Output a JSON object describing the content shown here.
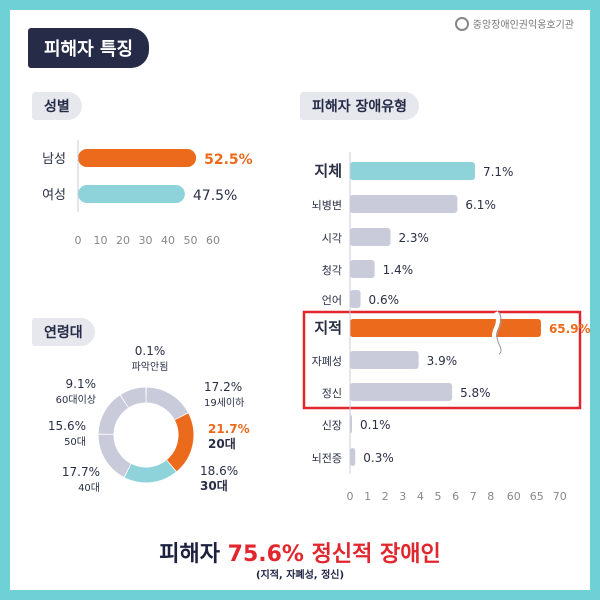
{
  "header": {
    "title": "피해자 특징",
    "org": "중앙장애인권익옹호기관"
  },
  "headline": {
    "prefix": "피해자",
    "stat": "75.6% 정신적 장애인",
    "note": "(지적, 자폐성, 정신)"
  },
  "colors": {
    "frame": "#6fd0d6",
    "orange": "#ec6a1c",
    "teal": "#8fd3da",
    "gray": "#c9cbdb",
    "navy": "#262b48",
    "highlight": "#e1262d"
  },
  "chart_data": [
    {
      "type": "bar",
      "title": "성별",
      "orientation": "horizontal",
      "categories": [
        "남성",
        "여성"
      ],
      "values": [
        52.5,
        47.5
      ],
      "value_labels": [
        "52.5%",
        "47.5%"
      ],
      "bar_colors": [
        "#ec6a1c",
        "#8fd3da"
      ],
      "ticks": [
        "0",
        "10",
        "20",
        "30",
        "40",
        "50",
        "60"
      ],
      "xlim": [
        0,
        60
      ]
    },
    {
      "type": "bar",
      "title": "피해자 장애유형",
      "orientation": "horizontal",
      "categories": [
        "지체",
        "뇌병변",
        "시각",
        "청각",
        "언어",
        "지적",
        "자폐성",
        "정신",
        "신장",
        "뇌전증"
      ],
      "values": [
        7.1,
        6.1,
        2.3,
        1.4,
        0.6,
        65.9,
        3.9,
        5.8,
        0.1,
        0.3
      ],
      "value_labels": [
        "7.1%",
        "6.1%",
        "2.3%",
        "1.4%",
        "0.6%",
        "65.9%",
        "3.9%",
        "5.8%",
        "0.1%",
        "0.3%"
      ],
      "bold_categories": [
        "지체",
        "지적"
      ],
      "bar_colors": [
        "#8fd3da",
        "#c9cbdb",
        "#c9cbdb",
        "#c9cbdb",
        "#c9cbdb",
        "#ec6a1c",
        "#c9cbdb",
        "#c9cbdb",
        "#c9cbdb",
        "#c9cbdb"
      ],
      "ticks": [
        "0",
        "1",
        "2",
        "3",
        "4",
        "5",
        "6",
        "7",
        "8",
        "60",
        "65",
        "70"
      ],
      "axis_break": true,
      "highlight_box": [
        "지적",
        "자폐성",
        "정신"
      ]
    },
    {
      "type": "pie",
      "title": "연령대",
      "donut": true,
      "slices": [
        {
          "label": "19세이하",
          "value": 17.2,
          "value_label": "17.2%",
          "color": "#c9cbdb"
        },
        {
          "label": "20대",
          "value": 21.7,
          "value_label": "21.7%",
          "color": "#ec6a1c"
        },
        {
          "label": "30대",
          "value": 18.6,
          "value_label": "18.6%",
          "color": "#8fd3da"
        },
        {
          "label": "40대",
          "value": 17.7,
          "value_label": "17.7%",
          "color": "#c9cbdb"
        },
        {
          "label": "50대",
          "value": 15.6,
          "value_label": "15.6%",
          "color": "#c9cbdb"
        },
        {
          "label": "60대이상",
          "value": 9.1,
          "value_label": "9.1%",
          "color": "#c9cbdb"
        },
        {
          "label": "파악안됨",
          "value": 0.1,
          "value_label": "0.1%",
          "color": "#c9cbdb"
        }
      ]
    }
  ]
}
